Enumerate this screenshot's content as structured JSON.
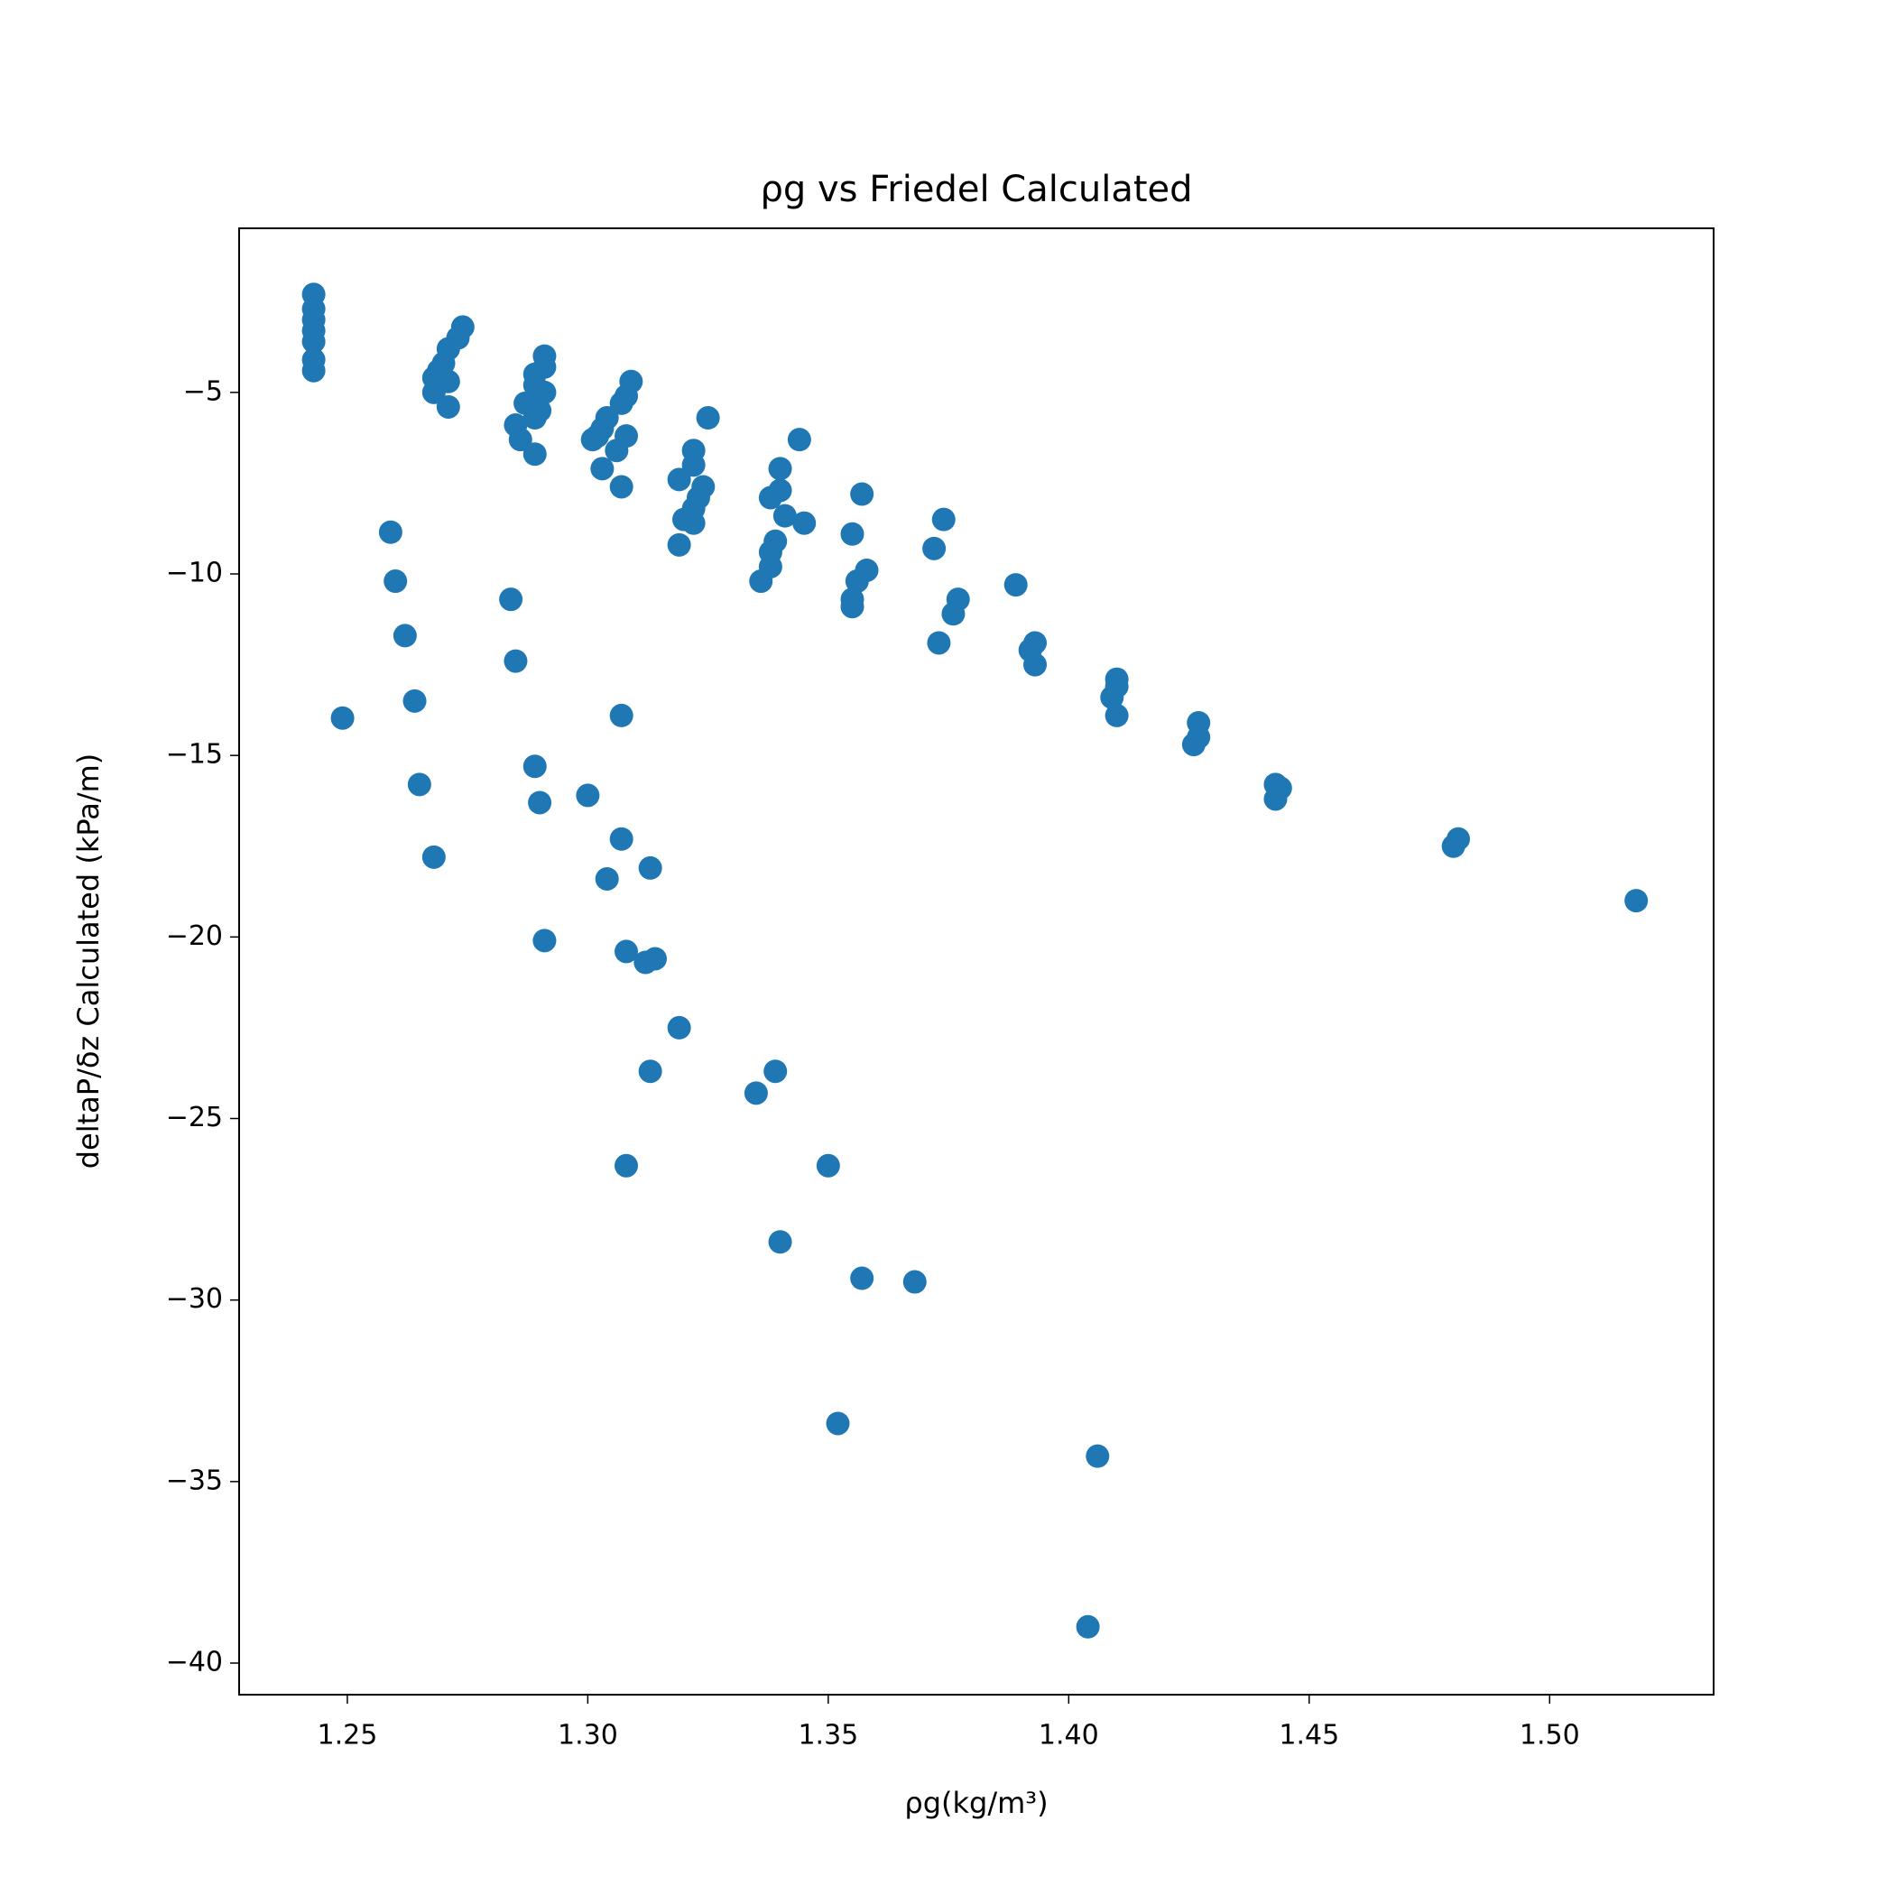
{
  "chart_data": {
    "type": "scatter",
    "title": "ρg vs Friedel Calculated",
    "x_label": "ρg(kg/m³)",
    "y_label": "deltaP/δz Calculated (kPa/m)",
    "color": "#1f77b4",
    "x": [
      1.243,
      1.243,
      1.243,
      1.243,
      1.243,
      1.243,
      1.243,
      1.249,
      1.274,
      1.273,
      1.271,
      1.27,
      1.269,
      1.268,
      1.271,
      1.268,
      1.271,
      1.259,
      1.26,
      1.262,
      1.264,
      1.265,
      1.268,
      1.291,
      1.291,
      1.289,
      1.289,
      1.291,
      1.287,
      1.29,
      1.289,
      1.285,
      1.286,
      1.289,
      1.284,
      1.285,
      1.289,
      1.29,
      1.291,
      1.309,
      1.308,
      1.307,
      1.304,
      1.303,
      1.302,
      1.308,
      1.301,
      1.306,
      1.303,
      1.307,
      1.3,
      1.307,
      1.307,
      1.304,
      1.313,
      1.308,
      1.312,
      1.314,
      1.319,
      1.313,
      1.308,
      1.325,
      1.322,
      1.322,
      1.319,
      1.324,
      1.323,
      1.322,
      1.32,
      1.322,
      1.319,
      1.344,
      1.34,
      1.34,
      1.338,
      1.341,
      1.345,
      1.339,
      1.338,
      1.338,
      1.336,
      1.335,
      1.339,
      1.34,
      1.35,
      1.352,
      1.357,
      1.368,
      1.357,
      1.355,
      1.358,
      1.356,
      1.355,
      1.355,
      1.374,
      1.372,
      1.377,
      1.376,
      1.373,
      1.389,
      1.393,
      1.392,
      1.393,
      1.41,
      1.41,
      1.409,
      1.41,
      1.427,
      1.427,
      1.426,
      1.443,
      1.444,
      1.443,
      1.481,
      1.48,
      1.518,
      1.406,
      1.404
    ],
    "values": [
      -2.3,
      -2.7,
      -3.0,
      -3.3,
      -3.6,
      -4.1,
      -4.4,
      -13.97,
      -3.2,
      -3.5,
      -3.8,
      -4.2,
      -4.4,
      -4.6,
      -4.7,
      -5.0,
      -5.4,
      -8.85,
      -10.2,
      -11.7,
      -13.5,
      -15.8,
      -17.8,
      -4.0,
      -4.3,
      -4.5,
      -4.8,
      -5.0,
      -5.3,
      -5.5,
      -5.7,
      -5.9,
      -6.3,
      -6.7,
      -10.7,
      -12.4,
      -15.3,
      -16.3,
      -20.1,
      -4.7,
      -5.1,
      -5.3,
      -5.7,
      -6.0,
      -6.2,
      -6.2,
      -6.3,
      -6.6,
      -7.1,
      -7.6,
      -16.1,
      -13.9,
      -17.3,
      -18.4,
      -18.1,
      -20.4,
      -20.7,
      -20.6,
      -22.5,
      -23.7,
      -26.3,
      -5.7,
      -6.6,
      -7.0,
      -7.4,
      -7.6,
      -7.9,
      -8.2,
      -8.5,
      -8.6,
      -9.2,
      -6.3,
      -7.1,
      -7.7,
      -7.9,
      -8.4,
      -8.6,
      -9.1,
      -9.4,
      -9.8,
      -10.2,
      -24.3,
      -23.7,
      -28.4,
      -26.3,
      -33.4,
      -29.4,
      -29.5,
      -7.8,
      -8.9,
      -9.9,
      -10.2,
      -10.7,
      -10.9,
      -8.5,
      -9.3,
      -10.7,
      -11.1,
      -11.9,
      -10.3,
      -11.9,
      -12.1,
      -12.5,
      -12.9,
      -13.1,
      -13.4,
      -13.9,
      -14.1,
      -14.5,
      -14.7,
      -15.8,
      -15.9,
      -16.2,
      -17.3,
      -17.5,
      -19.0,
      -34.3,
      -39.0
    ],
    "xlim": [
      1.2275,
      1.5341
    ],
    "ylim": [
      -40.87,
      -0.48
    ],
    "xticks": [
      1.25,
      {
        "value": 1.3,
        "label": "1.30"
      },
      1.35,
      {
        "value": 1.4,
        "label": "1.40"
      },
      1.45,
      {
        "value": 1.5,
        "label": "1.50"
      }
    ],
    "yticks": [
      {
        "value": -5,
        "label": "−5"
      },
      {
        "value": -10,
        "label": "−10"
      },
      {
        "value": -15,
        "label": "−15"
      },
      {
        "value": -20,
        "label": "−20"
      },
      {
        "value": -25,
        "label": "−25"
      },
      {
        "value": -30,
        "label": "−30"
      },
      {
        "value": -35,
        "label": "−35"
      },
      {
        "value": -40,
        "label": "−40"
      }
    ],
    "grid": false
  }
}
